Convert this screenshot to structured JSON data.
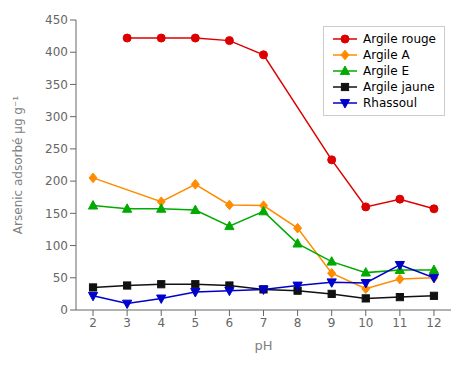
{
  "chart_data": {
    "type": "line",
    "xlabel": "pH",
    "ylabel": "Arsenic adsorbé µg g⁻¹",
    "xlim": [
      1.5,
      12.5
    ],
    "ylim": [
      0,
      450
    ],
    "xticks": [
      2,
      3,
      4,
      5,
      6,
      7,
      8,
      9,
      10,
      11,
      12
    ],
    "yticks": [
      0,
      50,
      100,
      150,
      200,
      250,
      300,
      350,
      400,
      450
    ],
    "grid": false,
    "legend": "upper right",
    "series": [
      {
        "name": "Argile rouge",
        "color": "#dd0000",
        "marker": "circle",
        "x": [
          3,
          4,
          5,
          6,
          7,
          9,
          10,
          11,
          12
        ],
        "values": [
          422,
          422,
          422,
          418,
          396,
          233,
          160,
          172,
          157
        ]
      },
      {
        "name": "Argile A",
        "color": "#ff8c00",
        "marker": "diamond",
        "x": [
          2,
          4,
          5,
          6,
          7,
          8,
          9,
          10,
          11,
          12
        ],
        "values": [
          205,
          168,
          195,
          163,
          162,
          127,
          57,
          33,
          48,
          50
        ]
      },
      {
        "name": "Argile E",
        "color": "#00aa00",
        "marker": "triangle-up",
        "x": [
          2,
          3,
          4,
          5,
          6,
          7,
          8,
          9,
          10,
          11,
          12
        ],
        "values": [
          162,
          157,
          157,
          155,
          130,
          153,
          103,
          75,
          58,
          62,
          62
        ]
      },
      {
        "name": "Argile jaune",
        "color": "#111111",
        "marker": "square",
        "x": [
          2,
          3,
          4,
          5,
          6,
          7,
          8,
          9,
          10,
          11,
          12
        ],
        "values": [
          35,
          38,
          40,
          40,
          38,
          32,
          30,
          25,
          18,
          20,
          22
        ]
      },
      {
        "name": "Rhassoul",
        "color": "#0000cc",
        "marker": "triangle-down",
        "x": [
          2,
          3,
          4,
          5,
          6,
          7,
          8,
          9,
          10,
          11,
          12
        ],
        "values": [
          22,
          10,
          18,
          28,
          30,
          32,
          38,
          43,
          42,
          70,
          50
        ]
      }
    ]
  }
}
